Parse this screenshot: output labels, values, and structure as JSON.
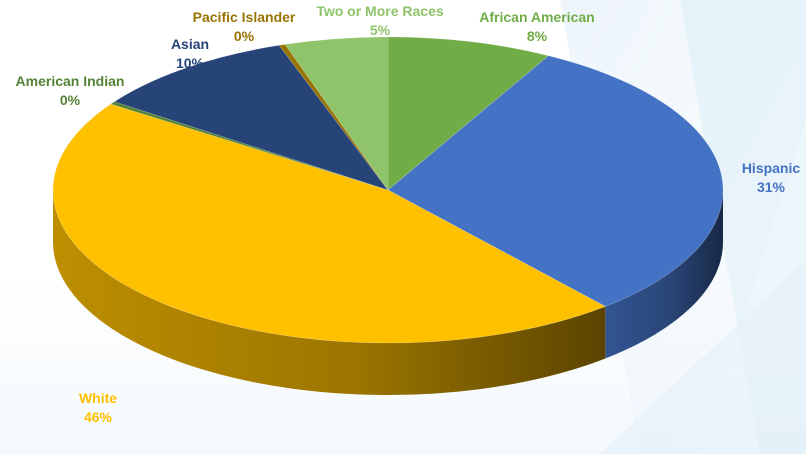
{
  "chart_data": {
    "type": "pie",
    "style": "3d",
    "title": "",
    "slices": [
      {
        "label": "African American",
        "value": 8,
        "pct_label": "8%",
        "color": "#70ad47",
        "label_color": "#70ad47"
      },
      {
        "label": "Hispanic",
        "value": 31,
        "pct_label": "31%",
        "color": "#4472c4",
        "label_color": "#4472c4"
      },
      {
        "label": "White",
        "value": 46,
        "pct_label": "46%",
        "color": "#ffc000",
        "label_color": "#ffc000"
      },
      {
        "label": "American Indian",
        "value": 0.3,
        "pct_label": "0%",
        "color": "#548235",
        "label_color": "#548235"
      },
      {
        "label": "Asian",
        "value": 10,
        "pct_label": "10%",
        "color": "#264478",
        "label_color": "#264478"
      },
      {
        "label": "Pacific Islander",
        "value": 0.3,
        "pct_label": "0%",
        "color": "#997300",
        "label_color": "#997300"
      },
      {
        "label": "Two or More Races",
        "value": 5,
        "pct_label": "5%",
        "color": "#8fc46a",
        "label_color": "#8fc46a"
      }
    ]
  }
}
